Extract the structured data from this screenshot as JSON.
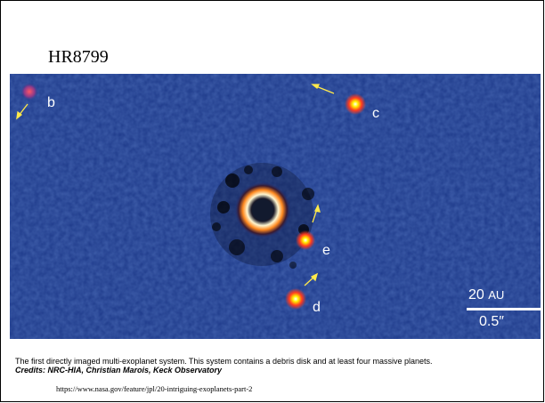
{
  "slide": {
    "title": "HR8799",
    "caption": "The first directly imaged multi-exoplanet system. This system contains a debris disk and at least four massive planets.",
    "credits": "Credits: NRC-HIA, Christian Marois, Keck Observatory",
    "url": "https://www.nasa.gov/feature/jpl/20-intriguing-exoplanets-part-2"
  },
  "image": {
    "planets": [
      {
        "label": "b"
      },
      {
        "label": "c"
      },
      {
        "label": "d"
      },
      {
        "label": "e"
      }
    ],
    "scale": {
      "au_value": "20",
      "au_unit": "AU",
      "arcsec": "0.5″"
    },
    "colors": {
      "background": "#1e3a8a",
      "planet_core": "#fff200",
      "planet_glow": "#ff3b1f",
      "arrow": "#ffe94a"
    }
  }
}
